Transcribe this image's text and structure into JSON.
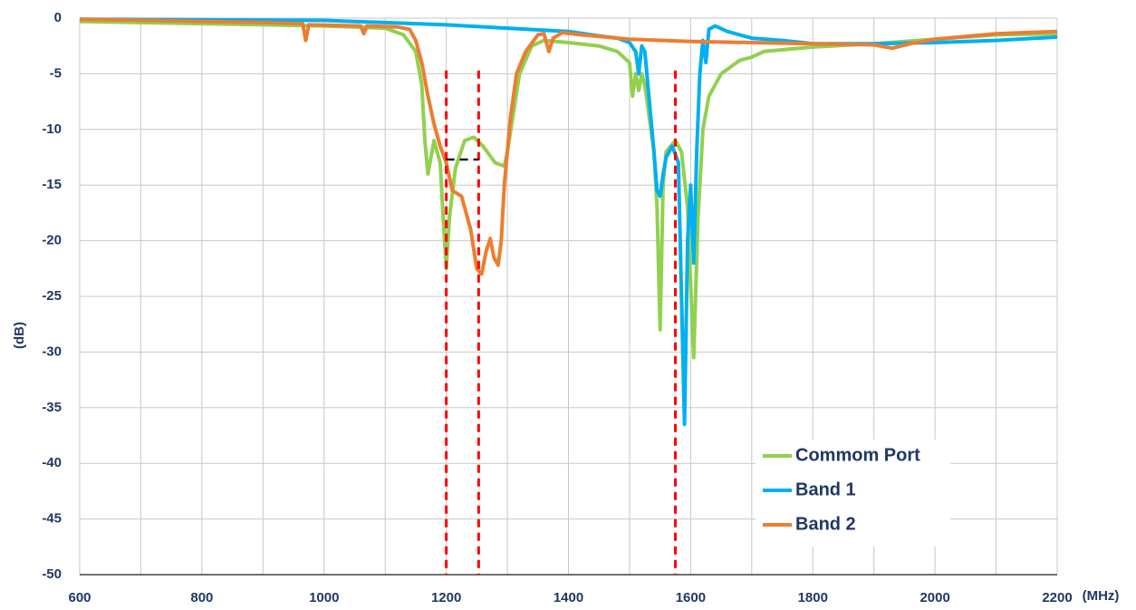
{
  "chart_data": {
    "type": "line",
    "xlabel": "(MHz)",
    "ylabel": "(dB)",
    "xlim": [
      600,
      2200
    ],
    "xticks": [
      600,
      800,
      1000,
      1200,
      1400,
      1600,
      1800,
      2000,
      2200
    ],
    "x_minor_grid": [
      700,
      900,
      1100,
      1300,
      1500,
      1700,
      1900,
      2100
    ],
    "ylim": [
      -50,
      0
    ],
    "yticks": [
      0,
      -5,
      -10,
      -15,
      -20,
      -25,
      -30,
      -35,
      -40,
      -45,
      -50
    ],
    "grid": true,
    "legend": "lower right",
    "reference_lines": {
      "x": [
        1200,
        1253,
        1575
      ],
      "y_top": -4.7,
      "color": "#ff0000"
    },
    "reference_hline": {
      "y": -12.7,
      "x": [
        1200,
        1253
      ],
      "color": "#1a1a1a"
    },
    "series": [
      {
        "name": "Commom Port",
        "color": "#92d050",
        "x": [
          600,
          800,
          1000,
          1100,
          1130,
          1150,
          1160,
          1165,
          1170,
          1180,
          1190,
          1195,
          1200,
          1205,
          1215,
          1230,
          1245,
          1260,
          1280,
          1295,
          1300,
          1320,
          1340,
          1360,
          1400,
          1450,
          1480,
          1500,
          1505,
          1510,
          1515,
          1520,
          1525,
          1530,
          1540,
          1545,
          1550,
          1555,
          1560,
          1575,
          1585,
          1595,
          1605,
          1612,
          1620,
          1630,
          1650,
          1680,
          1700,
          1720,
          1800,
          1900,
          2000,
          2100,
          2200
        ],
        "values": [
          -0.3,
          -0.5,
          -0.7,
          -0.9,
          -1.5,
          -3,
          -6,
          -11,
          -14,
          -11,
          -13,
          -18,
          -22.5,
          -18,
          -13.5,
          -11,
          -10.7,
          -11.5,
          -13,
          -13.3,
          -12,
          -5,
          -2.5,
          -2,
          -2.2,
          -2.5,
          -3,
          -4,
          -7,
          -5,
          -6.5,
          -5,
          -6,
          -8,
          -12,
          -17,
          -28,
          -15,
          -12,
          -11,
          -12,
          -17,
          -30.5,
          -18,
          -10,
          -7,
          -5,
          -3.8,
          -3.5,
          -3,
          -2.6,
          -2.3,
          -1.9,
          -1.5,
          -1.4
        ]
      },
      {
        "name": "Band 1",
        "color": "#00b0f0",
        "x": [
          600,
          1000,
          1100,
          1200,
          1300,
          1400,
          1450,
          1480,
          1500,
          1510,
          1515,
          1520,
          1525,
          1530,
          1535,
          1540,
          1545,
          1550,
          1555,
          1560,
          1570,
          1580,
          1585,
          1590,
          1595,
          1600,
          1605,
          1610,
          1615,
          1620,
          1625,
          1630,
          1640,
          1660,
          1680,
          1700,
          1750,
          1800,
          1900,
          2000,
          2100,
          2200
        ],
        "values": [
          -0.1,
          -0.2,
          -0.4,
          -0.6,
          -0.9,
          -1.2,
          -1.6,
          -1.8,
          -2.2,
          -3,
          -5,
          -2.5,
          -3,
          -6,
          -9,
          -12,
          -15.5,
          -16,
          -14,
          -12.5,
          -11.5,
          -13,
          -25,
          -36.5,
          -20,
          -15,
          -22,
          -12,
          -5,
          -2,
          -4,
          -1,
          -0.7,
          -1.2,
          -1.5,
          -1.8,
          -2,
          -2.3,
          -2.3,
          -2.2,
          -2,
          -1.7
        ]
      },
      {
        "name": "Band 2",
        "color": "#ed7d31",
        "x": [
          600,
          900,
          965,
          970,
          975,
          1060,
          1065,
          1070,
          1120,
          1140,
          1150,
          1160,
          1170,
          1180,
          1190,
          1200,
          1210,
          1225,
          1240,
          1250,
          1258,
          1265,
          1272,
          1278,
          1285,
          1290,
          1295,
          1305,
          1315,
          1330,
          1350,
          1360,
          1368,
          1375,
          1390,
          1420,
          1500,
          1600,
          1700,
          1800,
          1900,
          1930,
          1960,
          2000,
          2100,
          2200
        ],
        "values": [
          -0.1,
          -0.4,
          -0.5,
          -2,
          -0.6,
          -0.7,
          -1.4,
          -0.7,
          -0.8,
          -1,
          -2,
          -4,
          -7,
          -9.5,
          -11.5,
          -13,
          -15.5,
          -16,
          -19,
          -22.5,
          -23,
          -21,
          -19.8,
          -21.5,
          -22.2,
          -20,
          -15,
          -9,
          -5,
          -3,
          -1.5,
          -1.4,
          -3,
          -1.8,
          -1.3,
          -1.5,
          -1.9,
          -2.1,
          -2.2,
          -2.3,
          -2.4,
          -2.7,
          -2.3,
          -1.9,
          -1.4,
          -1.2
        ]
      }
    ]
  }
}
